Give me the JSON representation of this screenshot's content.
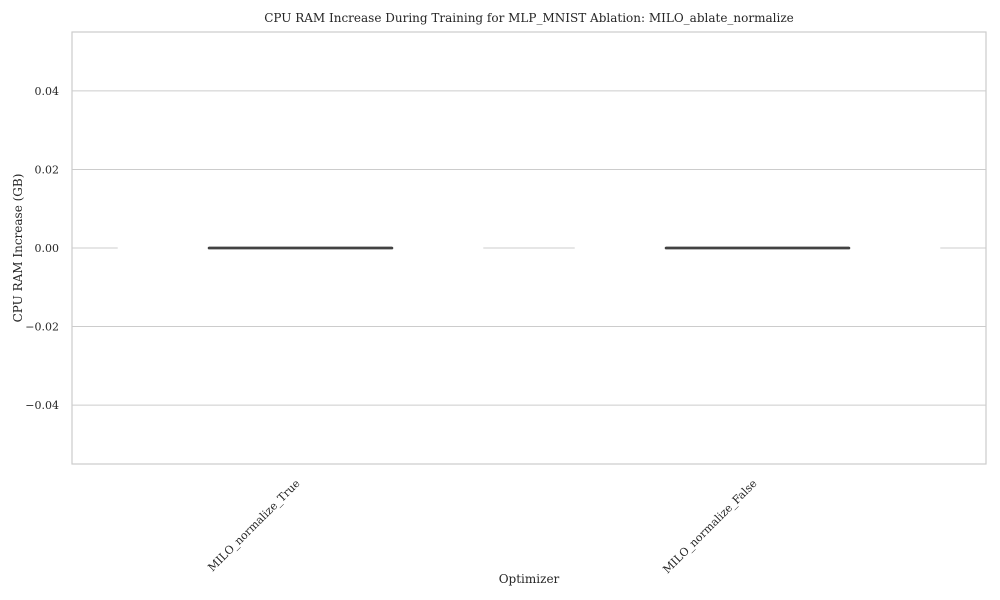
{
  "chart_data": {
    "type": "bar",
    "title": "CPU RAM Increase During Training for MLP_MNIST Ablation: MILO_ablate_normalize",
    "xlabel": "Optimizer",
    "ylabel": "CPU RAM Increase (GB)",
    "categories": [
      "MILO_normalize_True",
      "MILO_normalize_False"
    ],
    "values": [
      0.0,
      0.0
    ],
    "error_low": [
      0.0,
      0.0
    ],
    "error_high": [
      0.0,
      0.0
    ],
    "ylim": [
      -0.055,
      0.055
    ],
    "yticks": [
      -0.04,
      -0.02,
      0.0,
      0.02,
      0.04
    ],
    "ytick_labels": [
      "−0.04",
      "−0.02",
      "0.00",
      "0.02",
      "0.04"
    ],
    "grid": "horizontal",
    "legend": "none",
    "colors": {
      "grid": "#cccccc",
      "errorbar": "#424242",
      "bar": "#ffffff"
    }
  }
}
